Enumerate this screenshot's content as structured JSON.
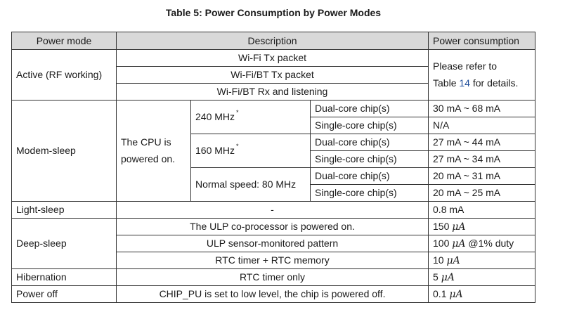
{
  "caption": "Table 5: Power Consumption by Power Modes",
  "headers": {
    "mode": "Power mode",
    "description": "Description",
    "power": "Power consumption"
  },
  "active": {
    "mode": "Active (RF working)",
    "desc": [
      "Wi-Fi Tx packet",
      "Wi-Fi/BT Tx packet",
      "Wi-Fi/BT Rx and listening"
    ],
    "power_pre": "Please refer to",
    "power_table_word": "Table",
    "power_ref": "14",
    "power_post": "for details."
  },
  "modem_sleep": {
    "mode": "Modem-sleep",
    "cpu_note": "The CPU is powered on.",
    "asterisk": "*",
    "speeds": [
      {
        "label": "240 MHz",
        "starred": true
      },
      {
        "label": "160 MHz",
        "starred": true
      },
      {
        "label": "Normal speed: 80 MHz",
        "starred": false
      }
    ],
    "rows": [
      {
        "chip": "Dual-core chip(s)",
        "power": "30 mA ~ 68 mA"
      },
      {
        "chip": "Single-core chip(s)",
        "power": "N/A"
      },
      {
        "chip": "Dual-core chip(s)",
        "power": "27 mA ~ 44 mA"
      },
      {
        "chip": "Single-core chip(s)",
        "power": "27 mA ~ 34 mA"
      },
      {
        "chip": "Dual-core chip(s)",
        "power": "20 mA ~ 31 mA"
      },
      {
        "chip": "Single-core chip(s)",
        "power": "20 mA ~ 25 mA"
      }
    ]
  },
  "light_sleep": {
    "mode": "Light-sleep",
    "desc": "-",
    "power": "0.8 mA"
  },
  "deep_sleep": {
    "mode": "Deep-sleep",
    "rows": [
      {
        "desc": "The ULP co-processor is powered on.",
        "value": "150",
        "unit": "μA",
        "suffix": ""
      },
      {
        "desc": "ULP sensor-monitored pattern",
        "value": "100",
        "unit": "μA",
        "suffix": "@1% duty"
      },
      {
        "desc": "RTC timer + RTC memory",
        "value": "10",
        "unit": "μA",
        "suffix": ""
      }
    ]
  },
  "hibernation": {
    "mode": "Hibernation",
    "desc": "RTC timer only",
    "value": "5",
    "unit": "μA"
  },
  "power_off": {
    "mode": "Power off",
    "desc": "CHIP_PU is set to low level, the chip is powered off.",
    "value": "0.1",
    "unit": "μA"
  }
}
